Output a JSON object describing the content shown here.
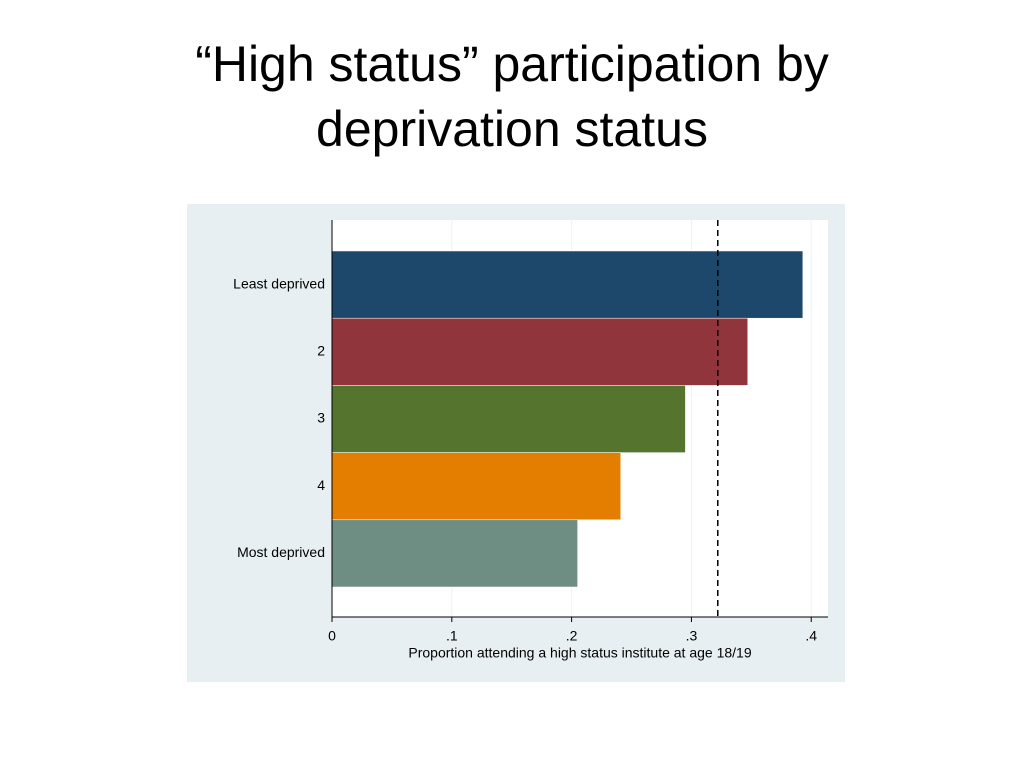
{
  "chart_data": {
    "type": "hbar",
    "title": "“High status” participation by deprivation status",
    "x_label": "Proportion attending a high status institute at age 18/19",
    "categories": [
      "Least deprived",
      "2",
      "3",
      "4",
      "Most deprived"
    ],
    "values": [
      0.393,
      0.347,
      0.295,
      0.241,
      0.205
    ],
    "colors": [
      "#1d476b",
      "#90353b",
      "#55752f",
      "#e37e00",
      "#6e8e84"
    ],
    "reference_line": 0.322,
    "xlim": [
      0,
      0.414
    ],
    "xticks": [
      0,
      {
        "value": 0.1,
        "label": ".1"
      },
      {
        "value": 0.2,
        "label": ".2"
      },
      {
        "value": 0.3,
        "label": ".3"
      },
      {
        "value": 0.4,
        "label": ".4"
      }
    ],
    "grid": true
  }
}
